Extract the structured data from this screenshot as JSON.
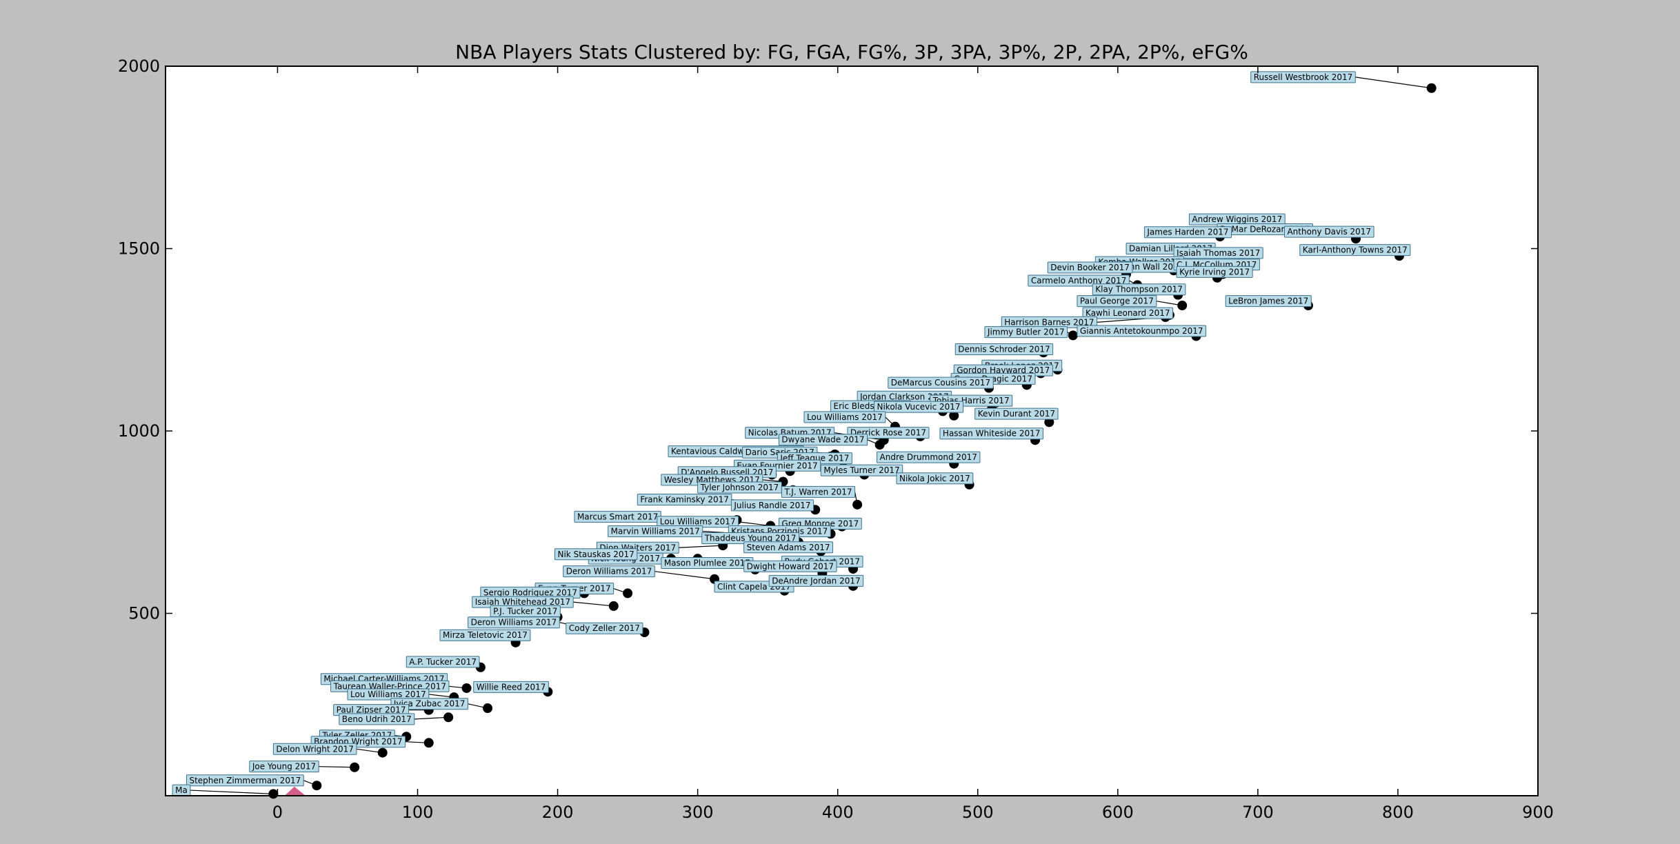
{
  "chart_data": {
    "type": "scatter",
    "title": "NBA Players Stats Clustered by: FG, FGA, FG%, 3P, 3PA, 3P%, 2P, 2PA, 2P%, eFG%",
    "xlabel": "",
    "ylabel": "",
    "xlim": [
      -80,
      900
    ],
    "ylim": [
      0,
      2000
    ],
    "x_ticks": [
      0,
      100,
      200,
      300,
      400,
      500,
      600,
      700,
      800,
      900
    ],
    "y_ticks": [
      500,
      1000,
      1500,
      2000
    ],
    "grid": false,
    "colors": {
      "figure_bg": "#bfbfbf",
      "axes_bg": "#ffffff",
      "point": "#000000",
      "label_box_fill": "#b9dbe8",
      "label_box_stroke": "#3b6f8a",
      "cluster_accent": "#c2185b"
    },
    "points": [
      {
        "name": "Russell Westbrook 2017",
        "x": 824,
        "y": 1940,
        "lx": 695,
        "ly": 1970
      },
      {
        "name": "Andrew Wiggins 2017",
        "x": 706,
        "y": 1550,
        "lx": 651,
        "ly": 1580
      },
      {
        "name": "DeMar DeRozan 2017",
        "x": 721,
        "y": 1549,
        "lx": 671,
        "ly": 1553
      },
      {
        "name": "James Harden 2017",
        "x": 673,
        "y": 1533,
        "lx": 619,
        "ly": 1545
      },
      {
        "name": "Anthony Davis 2017",
        "x": 770,
        "y": 1527,
        "lx": 719,
        "ly": 1546
      },
      {
        "name": "Karl-Anthony Towns 2017",
        "x": 801,
        "y": 1480,
        "lx": 730,
        "ly": 1496
      },
      {
        "name": "Damian Lillard 2017",
        "x": 682,
        "y": 1450,
        "lx": 606,
        "ly": 1500
      },
      {
        "name": "Isaiah Thomas 2017",
        "x": 688,
        "y": 1462,
        "lx": 640,
        "ly": 1488
      },
      {
        "name": "Kemba Walker 2017",
        "x": 675,
        "y": 1430,
        "lx": 584,
        "ly": 1463
      },
      {
        "name": "John Wall 2017",
        "x": 640,
        "y": 1440,
        "lx": 601,
        "ly": 1450
      },
      {
        "name": "C.J. McCollum 2017",
        "x": 690,
        "y": 1440,
        "lx": 640,
        "ly": 1456
      },
      {
        "name": "Kyrie Irving 2017",
        "x": 671,
        "y": 1420,
        "lx": 642,
        "ly": 1436
      },
      {
        "name": "Devin Booker 2017",
        "x": 606,
        "y": 1430,
        "lx": 550,
        "ly": 1448
      },
      {
        "name": "Carmelo Anthony 2017",
        "x": 614,
        "y": 1400,
        "lx": 536,
        "ly": 1412
      },
      {
        "name": "Klay Thompson 2017",
        "x": 643,
        "y": 1373,
        "lx": 582,
        "ly": 1388
      },
      {
        "name": "Paul George 2017",
        "x": 646,
        "y": 1344,
        "lx": 571,
        "ly": 1356
      },
      {
        "name": "LeBron James 2017",
        "x": 736,
        "y": 1344,
        "lx": 677,
        "ly": 1356
      },
      {
        "name": "Kawhi Leonard 2017",
        "x": 637,
        "y": 1318,
        "lx": 575,
        "ly": 1323
      },
      {
        "name": "Harrison Barnes 2017",
        "x": 634,
        "y": 1312,
        "lx": 517,
        "ly": 1298
      },
      {
        "name": "Giannis Antetokounmpo 2017",
        "x": 656,
        "y": 1260,
        "lx": 571,
        "ly": 1274
      },
      {
        "name": "Jimmy Butler 2017",
        "x": 568,
        "y": 1262,
        "lx": 505,
        "ly": 1271
      },
      {
        "name": "Dennis Schroder 2017",
        "x": 547,
        "y": 1215,
        "lx": 484,
        "ly": 1224
      },
      {
        "name": "Brook Lopez 2017",
        "x": 557,
        "y": 1168,
        "lx": 503,
        "ly": 1179
      },
      {
        "name": "Gordon Hayward 2017",
        "x": 545,
        "y": 1158,
        "lx": 483,
        "ly": 1166
      },
      {
        "name": "Goran Dragic 2017",
        "x": 535,
        "y": 1126,
        "lx": 481,
        "ly": 1143
      },
      {
        "name": "DeMarcus Cousins 2017",
        "x": 508,
        "y": 1118,
        "lx": 436,
        "ly": 1132
      },
      {
        "name": "Jordan Clarkson 2017",
        "x": 485,
        "y": 1082,
        "lx": 414,
        "ly": 1094
      },
      {
        "name": "Tobias Harris 2017",
        "x": 510,
        "y": 1060,
        "lx": 466,
        "ly": 1083
      },
      {
        "name": "Eric Bledsoe 2017",
        "x": 475,
        "y": 1054,
        "lx": 395,
        "ly": 1068
      },
      {
        "name": "Nikola Vucevic 2017",
        "x": 483,
        "y": 1042,
        "lx": 426,
        "ly": 1066
      },
      {
        "name": "Kevin Durant 2017",
        "x": 551,
        "y": 1024,
        "lx": 498,
        "ly": 1047
      },
      {
        "name": "Lou Williams 2017",
        "x": 441,
        "y": 1012,
        "lx": 376,
        "ly": 1038
      },
      {
        "name": "Derrick Rose 2017",
        "x": 459,
        "y": 985,
        "lx": 407,
        "ly": 995
      },
      {
        "name": "Hassan Whiteside 2017",
        "x": 541,
        "y": 975,
        "lx": 473,
        "ly": 993
      },
      {
        "name": "Nicolas Batum 2017",
        "x": 433,
        "y": 975,
        "lx": 334,
        "ly": 995
      },
      {
        "name": "Dwyane Wade 2017",
        "x": 430,
        "y": 962,
        "lx": 358,
        "ly": 976
      },
      {
        "name": "Kentavious Caldwell-Pope 2017",
        "x": 395,
        "y": 930,
        "lx": 279,
        "ly": 944
      },
      {
        "name": "Dario Saric 2017",
        "x": 398,
        "y": 936,
        "lx": 332,
        "ly": 941
      },
      {
        "name": "Jeff Teague 2017",
        "x": 404,
        "y": 918,
        "lx": 357,
        "ly": 925
      },
      {
        "name": "Andre Drummond 2017",
        "x": 483,
        "y": 910,
        "lx": 428,
        "ly": 928
      },
      {
        "name": "Evan Fournier 2017",
        "x": 366,
        "y": 890,
        "lx": 326,
        "ly": 905
      },
      {
        "name": "D'Angelo Russell 2017",
        "x": 353,
        "y": 880,
        "lx": 286,
        "ly": 887
      },
      {
        "name": "Myles Turner 2017",
        "x": 419,
        "y": 880,
        "lx": 388,
        "ly": 892
      },
      {
        "name": "Nikola Jokic 2017",
        "x": 494,
        "y": 853,
        "lx": 442,
        "ly": 870
      },
      {
        "name": "Wesley Matthews 2017",
        "x": 361,
        "y": 861,
        "lx": 274,
        "ly": 866
      },
      {
        "name": "Tyler Johnson 2017",
        "x": 368,
        "y": 838,
        "lx": 300,
        "ly": 845
      },
      {
        "name": "T.J. Warren 2017",
        "x": 414,
        "y": 798,
        "lx": 360,
        "ly": 833
      },
      {
        "name": "Frank Kaminsky 2017",
        "x": 352,
        "y": 798,
        "lx": 257,
        "ly": 812
      },
      {
        "name": "Julius Randle 2017",
        "x": 384,
        "y": 784,
        "lx": 324,
        "ly": 796
      },
      {
        "name": "Marcus Smart 2017",
        "x": 328,
        "y": 756,
        "lx": 212,
        "ly": 765
      },
      {
        "name": "Lou Williams 2017",
        "x": 352,
        "y": 740,
        "lx": 271,
        "ly": 751
      },
      {
        "name": "Greg Monroe 2017",
        "x": 403,
        "y": 738,
        "lx": 358,
        "ly": 746
      },
      {
        "name": "Marvin Williams 2017",
        "x": 333,
        "y": 718,
        "lx": 236,
        "ly": 725
      },
      {
        "name": "Kristaps Porzingis 2017",
        "x": 395,
        "y": 718,
        "lx": 322,
        "ly": 725
      },
      {
        "name": "Thaddeus Young 2017",
        "x": 372,
        "y": 695,
        "lx": 303,
        "ly": 706
      },
      {
        "name": "Dion Waiters 2017",
        "x": 318,
        "y": 686,
        "lx": 228,
        "ly": 680
      },
      {
        "name": "Rudy Gobert 2017",
        "x": 411,
        "y": 622,
        "lx": 360,
        "ly": 642
      },
      {
        "name": "Steven Adams 2017",
        "x": 388,
        "y": 670,
        "lx": 333,
        "ly": 681
      },
      {
        "name": "Nick Young 2017",
        "x": 300,
        "y": 650,
        "lx": 222,
        "ly": 650
      },
      {
        "name": "Mason Plumlee 2017",
        "x": 341,
        "y": 620,
        "lx": 274,
        "ly": 638
      },
      {
        "name": "Dwight Howard 2017",
        "x": 389,
        "y": 610,
        "lx": 333,
        "ly": 629
      },
      {
        "name": "Nik Stauskas 2017",
        "x": 281,
        "y": 650,
        "lx": 198,
        "ly": 662
      },
      {
        "name": "Deron Williams 2017",
        "x": 312,
        "y": 594,
        "lx": 204,
        "ly": 615
      },
      {
        "name": "Clint Capela 2017",
        "x": 362,
        "y": 562,
        "lx": 312,
        "ly": 573
      },
      {
        "name": "DeAndre Jordan 2017",
        "x": 411,
        "y": 575,
        "lx": 351,
        "ly": 589
      },
      {
        "name": "Evan Turner 2017",
        "x": 250,
        "y": 555,
        "lx": 184,
        "ly": 568
      },
      {
        "name": "Sergio Rodriguez 2017",
        "x": 219,
        "y": 555,
        "lx": 145,
        "ly": 557
      },
      {
        "name": "Isaiah Whitehead 2017",
        "x": 240,
        "y": 520,
        "lx": 139,
        "ly": 531
      },
      {
        "name": "P.J. Tucker 2017",
        "x": 200,
        "y": 490,
        "lx": 152,
        "ly": 506
      },
      {
        "name": "Deron Williams 2017",
        "x": 220,
        "y": 460,
        "lx": 136,
        "ly": 475
      },
      {
        "name": "Cody Zeller 2017",
        "x": 262,
        "y": 448,
        "lx": 206,
        "ly": 459
      },
      {
        "name": "Mirza Teletovic 2017",
        "x": 170,
        "y": 420,
        "lx": 116,
        "ly": 440
      },
      {
        "name": "A.P. Tucker 2017",
        "x": 145,
        "y": 352,
        "lx": 92,
        "ly": 367
      },
      {
        "name": "Michael Carter-Williams 2017",
        "x": 108,
        "y": 318,
        "lx": 31,
        "ly": 320
      },
      {
        "name": "Taurean Waller-Prince 2017",
        "x": 135,
        "y": 295,
        "lx": 38,
        "ly": 300
      },
      {
        "name": "Willie Reed 2017",
        "x": 193,
        "y": 285,
        "lx": 140,
        "ly": 298
      },
      {
        "name": "Lou Williams 2017",
        "x": 126,
        "y": 270,
        "lx": 50,
        "ly": 278
      },
      {
        "name": "Ivica Zubac 2017",
        "x": 150,
        "y": 240,
        "lx": 81,
        "ly": 252
      },
      {
        "name": "Paul Zipser 2017",
        "x": 108,
        "y": 235,
        "lx": 40,
        "ly": 235
      },
      {
        "name": "Beno Udrih 2017",
        "x": 122,
        "y": 215,
        "lx": 44,
        "ly": 210
      },
      {
        "name": "Tyler Zeller 2017",
        "x": 92,
        "y": 162,
        "lx": 30,
        "ly": 165
      },
      {
        "name": "Brandon Wright 2017",
        "x": 108,
        "y": 145,
        "lx": 24,
        "ly": 148
      },
      {
        "name": "Delon Wright 2017",
        "x": 75,
        "y": 118,
        "lx": -3,
        "ly": 128
      },
      {
        "name": "Joe Young 2017",
        "x": 55,
        "y": 78,
        "lx": -20,
        "ly": 80
      },
      {
        "name": "Stephen Zimmerman 2017",
        "x": 28,
        "y": 28,
        "lx": -65,
        "ly": 42
      },
      {
        "name": "Ma",
        "x": -3,
        "y": 5,
        "lx": -75,
        "ly": 15
      }
    ]
  }
}
